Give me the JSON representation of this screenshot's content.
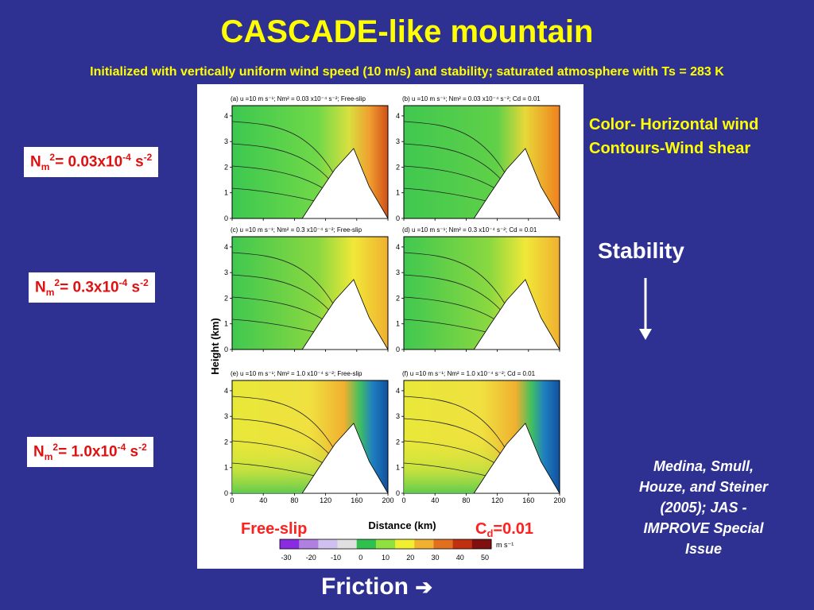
{
  "title": "CASCADE-like mountain",
  "subtitle": "Initialized with vertically uniform wind speed (10 m/s) and stability; saturated atmosphere with Ts = 283 K",
  "stability_labels": [
    {
      "prefix": "N",
      "sub": "m",
      "sup": "2",
      "value": "= 0.03x10",
      "exp": "-4",
      "unit": " s",
      "unit_exp": "-2"
    },
    {
      "prefix": "N",
      "sub": "m",
      "sup": "2",
      "value": "= 0.3x10",
      "exp": "-4",
      "unit": " s",
      "unit_exp": "-2"
    },
    {
      "prefix": "N",
      "sub": "m",
      "sup": "2",
      "value": "= 1.0x10",
      "exp": "-4",
      "unit": " s",
      "unit_exp": "-2"
    }
  ],
  "arrow_glyph": "➔",
  "legend": {
    "line1": "Color- Horizontal wind",
    "line2": "Contours-Wind shear"
  },
  "stability_word": "Stability",
  "friction_word": "Friction",
  "citation": [
    "Medina, Smull,",
    "Houze, and Steiner",
    "(2005); JAS -",
    "IMPROVE Special",
    "Issue"
  ],
  "figure": {
    "panels": [
      "(a)  u =10 m s⁻¹; Nm² = 0.03 x10⁻⁴ s⁻²; Free-slip",
      "(b)  u =10 m s⁻¹; Nm² = 0.03 x10⁻⁴ s⁻²; Cd = 0.01",
      "(c)  u =10 m s⁻¹; Nm² = 0.3 x10⁻⁴ s⁻²; Free-slip",
      "(d)  u =10 m s⁻¹; Nm² = 0.3 x10⁻⁴ s⁻²; Cd = 0.01",
      "(e)  u =10 m s⁻¹; Nm² = 1.0 x10⁻⁴ s⁻²; Free-slip",
      "(f)  u =10 m s⁻¹; Nm² = 1.0 x10⁻⁴ s⁻²; Cd = 0.01"
    ],
    "y_ticks": [
      "0",
      "1",
      "2",
      "3",
      "4"
    ],
    "x_ticks": [
      "0",
      "40",
      "80",
      "120",
      "160",
      "200"
    ],
    "y_axis_label": "Height (km)",
    "x_axis_label": "Distance (km)",
    "free_slip_label": "Free-slip",
    "cd_label": {
      "main": "C",
      "sub": "d",
      "rest": "=0.01"
    },
    "colorbar_ticks": [
      "-30",
      "-20",
      "-10",
      "0",
      "10",
      "20",
      "30",
      "40",
      "50"
    ],
    "colorbar_unit": "m s⁻¹",
    "colors": [
      "#8a2be2",
      "#b080e0",
      "#d0c0f0",
      "#e0e0e0",
      "#30c050",
      "#90e040",
      "#f0f030",
      "#f0b030",
      "#e07020",
      "#c03010",
      "#801010"
    ]
  }
}
